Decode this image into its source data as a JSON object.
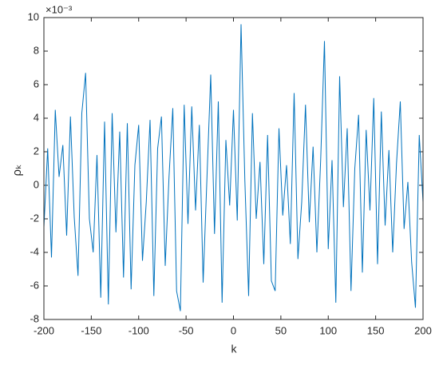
{
  "chart_data": {
    "type": "line",
    "x_label": "k",
    "y_label": "ρₖ",
    "y_exponent_label": "×10⁻³",
    "x": [
      -200,
      -196,
      -192,
      -188,
      -184,
      -180,
      -176,
      -172,
      -168,
      -164,
      -160,
      -156,
      -152,
      -148,
      -144,
      -140,
      -136,
      -132,
      -128,
      -124,
      -120,
      -116,
      -112,
      -108,
      -104,
      -100,
      -96,
      -92,
      -88,
      -84,
      -80,
      -76,
      -72,
      -68,
      -64,
      -60,
      -56,
      -52,
      -48,
      -44,
      -40,
      -36,
      -32,
      -28,
      -24,
      -20,
      -16,
      -12,
      -8,
      -4,
      0,
      4,
      8,
      12,
      16,
      20,
      24,
      28,
      32,
      36,
      40,
      44,
      48,
      52,
      56,
      60,
      64,
      68,
      72,
      76,
      80,
      84,
      88,
      92,
      96,
      100,
      104,
      108,
      112,
      116,
      120,
      124,
      128,
      132,
      136,
      140,
      144,
      148,
      152,
      156,
      160,
      164,
      168,
      172,
      176,
      180,
      184,
      188,
      192,
      196,
      200
    ],
    "series": [
      {
        "name": "rho",
        "color": "#0072bd",
        "values": [
          -2.5,
          2.2,
          -4.3,
          4.5,
          0.5,
          2.4,
          -3.0,
          4.1,
          -1.9,
          -5.4,
          4.3,
          6.7,
          -2.0,
          -4.0,
          1.8,
          -6.7,
          3.8,
          -7.1,
          4.3,
          -2.8,
          3.2,
          -5.5,
          3.7,
          -6.2,
          1.2,
          3.6,
          -4.5,
          -1.0,
          3.9,
          -6.6,
          2.2,
          4.1,
          -4.8,
          0.5,
          4.6,
          -6.3,
          -7.5,
          4.8,
          -2.3,
          4.7,
          -1.5,
          3.6,
          -5.8,
          0.4,
          6.6,
          -2.9,
          5.0,
          -7.0,
          2.7,
          -1.2,
          4.5,
          -2.1,
          9.6,
          0.3,
          -6.6,
          4.3,
          -2.0,
          1.4,
          -4.7,
          3.0,
          -5.7,
          -6.3,
          3.4,
          -1.8,
          1.2,
          -3.5,
          5.5,
          -4.4,
          -1.0,
          4.8,
          -2.2,
          2.3,
          -4.0,
          1.5,
          8.6,
          -3.8,
          1.5,
          -7.0,
          6.5,
          -1.3,
          3.4,
          -6.3,
          1.0,
          4.2,
          -5.2,
          3.3,
          -1.5,
          5.2,
          -4.7,
          4.4,
          -2.4,
          2.1,
          -4.0,
          1.3,
          5.0,
          -2.6,
          0.2,
          -4.6,
          -7.3,
          3.0,
          -1.0
        ]
      }
    ],
    "xlim": [
      -200,
      200
    ],
    "xticks": [
      -200,
      -150,
      -100,
      -50,
      0,
      50,
      100,
      150,
      200
    ],
    "ylim": [
      -8,
      10
    ],
    "yticks": [
      -8,
      -6,
      -4,
      -2,
      0,
      2,
      4,
      6,
      8,
      10
    ]
  }
}
